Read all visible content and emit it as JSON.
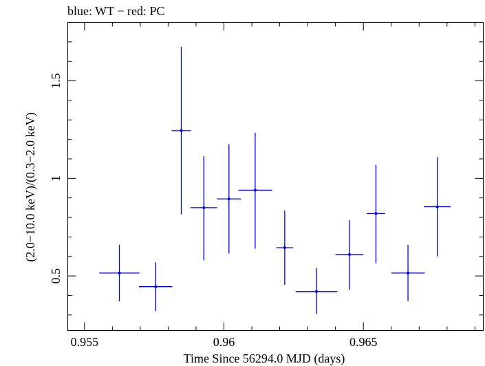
{
  "chart_data": {
    "type": "scatter",
    "title": "blue: WT − red: PC",
    "xlabel": "Time Since 56294.0 MJD (days)",
    "ylabel": "(2.0−10.0 keV)/(0.3−2.0 keV)",
    "xlim": [
      0.9544,
      0.9693
    ],
    "ylim": [
      0.22,
      1.8
    ],
    "x_major_ticks": [
      0.955,
      0.96,
      0.965
    ],
    "x_tick_labels": [
      "0.955",
      "0.96",
      "0.965"
    ],
    "y_major_ticks": [
      0.5,
      1.0,
      1.5
    ],
    "y_tick_labels": [
      "0.5",
      "1",
      "1.5"
    ],
    "series": [
      {
        "name": "WT",
        "color": "#0000dd",
        "points": [
          {
            "x": 0.95625,
            "xerr": 0.00072,
            "y": 0.515,
            "ylo": 0.37,
            "yhi": 0.66
          },
          {
            "x": 0.95755,
            "xerr": 0.0006,
            "y": 0.445,
            "ylo": 0.32,
            "yhi": 0.57
          },
          {
            "x": 0.95847,
            "xerr": 0.00035,
            "y": 1.245,
            "ylo": 0.815,
            "yhi": 1.675
          },
          {
            "x": 0.95928,
            "xerr": 0.00048,
            "y": 0.85,
            "ylo": 0.58,
            "yhi": 1.115
          },
          {
            "x": 0.96018,
            "xerr": 0.00043,
            "y": 0.895,
            "ylo": 0.615,
            "yhi": 1.175
          },
          {
            "x": 0.96112,
            "xerr": 0.0006,
            "y": 0.94,
            "ylo": 0.64,
            "yhi": 1.235
          },
          {
            "x": 0.96218,
            "xerr": 0.0003,
            "y": 0.645,
            "ylo": 0.455,
            "yhi": 0.835
          },
          {
            "x": 0.96332,
            "xerr": 0.00075,
            "y": 0.42,
            "ylo": 0.305,
            "yhi": 0.54
          },
          {
            "x": 0.9645,
            "xerr": 0.0005,
            "y": 0.61,
            "ylo": 0.43,
            "yhi": 0.785
          },
          {
            "x": 0.96545,
            "xerr": 0.00033,
            "y": 0.82,
            "ylo": 0.565,
            "yhi": 1.07
          },
          {
            "x": 0.9666,
            "xerr": 0.0006,
            "y": 0.515,
            "ylo": 0.37,
            "yhi": 0.66
          },
          {
            "x": 0.96765,
            "xerr": 0.00048,
            "y": 0.855,
            "ylo": 0.6,
            "yhi": 1.11
          }
        ]
      }
    ]
  }
}
